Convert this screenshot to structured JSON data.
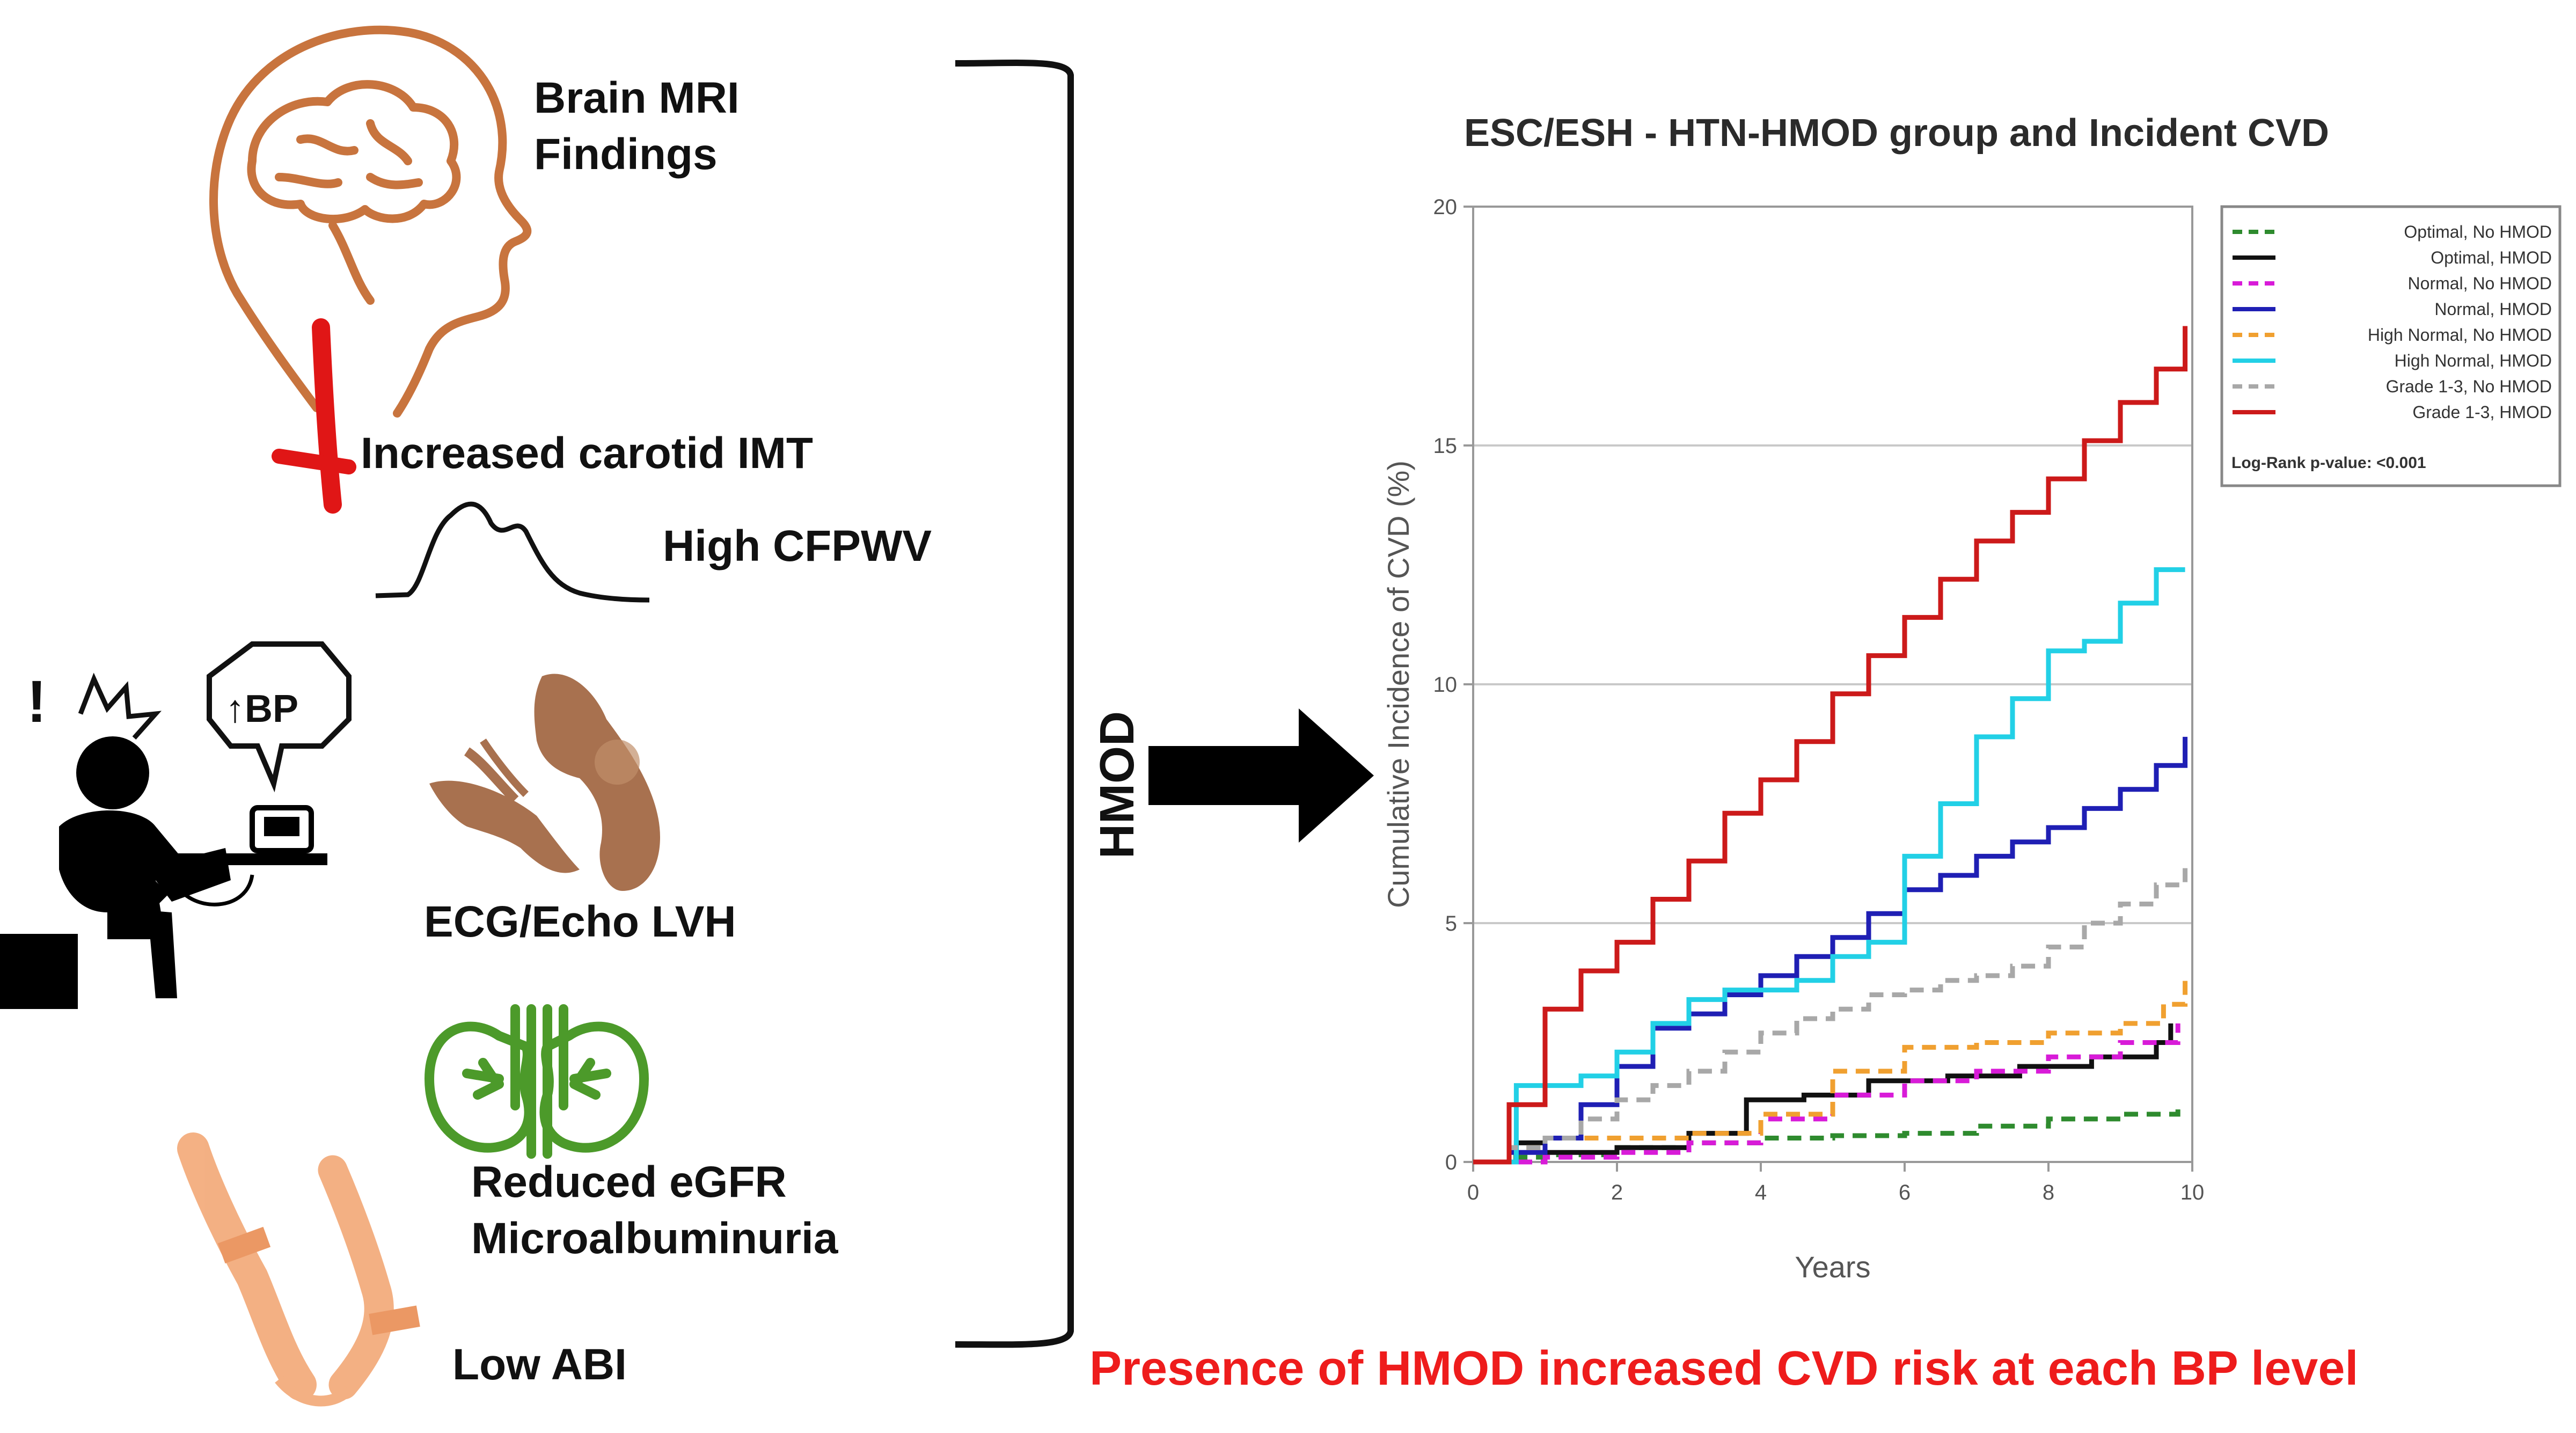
{
  "panel": {
    "findings": {
      "brain": "Brain MRI",
      "brain2": "Findings",
      "carotid": "Increased carotid IMT",
      "cfpwv": "High CFPWV",
      "lvh": "ECG/Echo LVH",
      "egfr": "Reduced eGFR",
      "micro": "Microalbuminuria",
      "abi": "Low ABI"
    },
    "bp_bubble": "↑BP",
    "exclaim": "!",
    "hmod_label": "HMOD",
    "conclusion": "Presence of HMOD increased CVD risk at each BP level"
  },
  "colors": {
    "brain": "#c8743e",
    "carotid": "#e01616",
    "heart": "#a8714f",
    "kidney": "#4c9a2a",
    "arm": "#f2a36e",
    "conclusion": "#ee1c1c"
  },
  "chart_data": {
    "type": "line",
    "title": "ESC/ESH - HTN-HMOD group and Incident CVD",
    "xlabel": "Years",
    "ylabel": "Cumulative Incidence of CVD (%)",
    "xlim": [
      0,
      10
    ],
    "ylim": [
      0,
      20
    ],
    "xticks": [
      "0",
      "2",
      "4",
      "6",
      "8",
      "10"
    ],
    "yticks": [
      "0",
      "5",
      "10",
      "15",
      "20"
    ],
    "legend_note": "Log-Rank p-value: <0.001",
    "series": [
      {
        "name": "Optimal, No HMOD",
        "color": "#2e8b2e",
        "dash": "dashed",
        "x": [
          0,
          0.5,
          1,
          2,
          3,
          4,
          5,
          6,
          7,
          8,
          9,
          9.8
        ],
        "y": [
          0,
          0.1,
          0.15,
          0.3,
          0.4,
          0.5,
          0.55,
          0.6,
          0.75,
          0.9,
          1.0,
          1.1
        ]
      },
      {
        "name": "Optimal, HMOD",
        "color": "#111111",
        "dash": "solid",
        "x": [
          0,
          0.6,
          1,
          2,
          3,
          3.8,
          4.6,
          5.5,
          6.6,
          7.6,
          8.6,
          9.5,
          9.7
        ],
        "y": [
          0,
          0.4,
          0.2,
          0.3,
          0.6,
          1.3,
          1.4,
          1.7,
          1.8,
          2.0,
          2.2,
          2.5,
          2.9
        ]
      },
      {
        "name": "Normal, No HMOD",
        "color": "#d81bd8",
        "dash": "dashed",
        "x": [
          0,
          1,
          2,
          3,
          4,
          5,
          6,
          7,
          8,
          9,
          9.8
        ],
        "y": [
          0,
          0.1,
          0.2,
          0.4,
          0.9,
          1.4,
          1.7,
          1.9,
          2.2,
          2.5,
          2.9
        ]
      },
      {
        "name": "Normal, HMOD",
        "color": "#1f1fb4",
        "dash": "solid",
        "x": [
          0,
          0.5,
          1,
          1.5,
          2,
          2.5,
          3,
          3.5,
          4,
          4.5,
          5,
          5.5,
          6,
          6.5,
          7,
          7.5,
          8,
          8.5,
          9,
          9.5,
          9.9
        ],
        "y": [
          0,
          0.2,
          0.5,
          1.2,
          2.0,
          2.8,
          3.1,
          3.5,
          3.9,
          4.3,
          4.7,
          5.2,
          5.7,
          6.0,
          6.4,
          6.7,
          7.0,
          7.4,
          7.8,
          8.3,
          8.9
        ]
      },
      {
        "name": "High Normal, No HMOD",
        "color": "#f0a030",
        "dash": "dashed",
        "x": [
          0,
          0.5,
          1,
          2,
          3,
          4,
          5,
          6,
          7,
          8,
          9,
          9.6,
          9.9
        ],
        "y": [
          0,
          0.3,
          0.5,
          0.5,
          0.6,
          1.0,
          1.9,
          2.4,
          2.5,
          2.7,
          2.9,
          3.3,
          3.9
        ]
      },
      {
        "name": "High Normal, HMOD",
        "color": "#22d0e6",
        "dash": "solid",
        "x": [
          0,
          0.6,
          1,
          1.5,
          2,
          2.5,
          3,
          3.5,
          4,
          4.5,
          5,
          5.5,
          6,
          6.5,
          7,
          7.5,
          8,
          8.5,
          9,
          9.5,
          9.9
        ],
        "y": [
          0,
          1.6,
          1.6,
          1.8,
          2.3,
          2.9,
          3.4,
          3.6,
          3.6,
          3.8,
          4.3,
          4.6,
          6.4,
          7.5,
          8.9,
          9.7,
          10.7,
          10.9,
          11.7,
          12.4,
          12.4
        ]
      },
      {
        "name": "Grade 1-3, No HMOD",
        "color": "#a8a8a8",
        "dash": "dashed",
        "x": [
          0,
          0.5,
          1,
          1.5,
          2,
          2.5,
          3,
          3.5,
          4,
          4.5,
          5,
          5.5,
          6,
          6.5,
          7,
          7.5,
          8,
          8.5,
          9,
          9.5,
          9.9
        ],
        "y": [
          0,
          0.3,
          0.5,
          0.9,
          1.3,
          1.6,
          1.9,
          2.3,
          2.7,
          3.0,
          3.2,
          3.5,
          3.6,
          3.8,
          3.9,
          4.1,
          4.5,
          5.0,
          5.4,
          5.8,
          6.2
        ]
      },
      {
        "name": "Grade 1-3, HMOD",
        "color": "#cc1a1a",
        "dash": "solid",
        "x": [
          0,
          0.5,
          1,
          1.5,
          2,
          2.5,
          3,
          3.5,
          4,
          4.5,
          5,
          5.5,
          6,
          6.5,
          7,
          7.5,
          8,
          8.5,
          9,
          9.5,
          9.9
        ],
        "y": [
          0,
          1.2,
          3.2,
          4.0,
          4.6,
          5.5,
          6.3,
          7.3,
          8.0,
          8.8,
          9.8,
          10.6,
          11.4,
          12.2,
          13.0,
          13.6,
          14.3,
          15.1,
          15.9,
          16.6,
          17.5
        ]
      }
    ]
  }
}
